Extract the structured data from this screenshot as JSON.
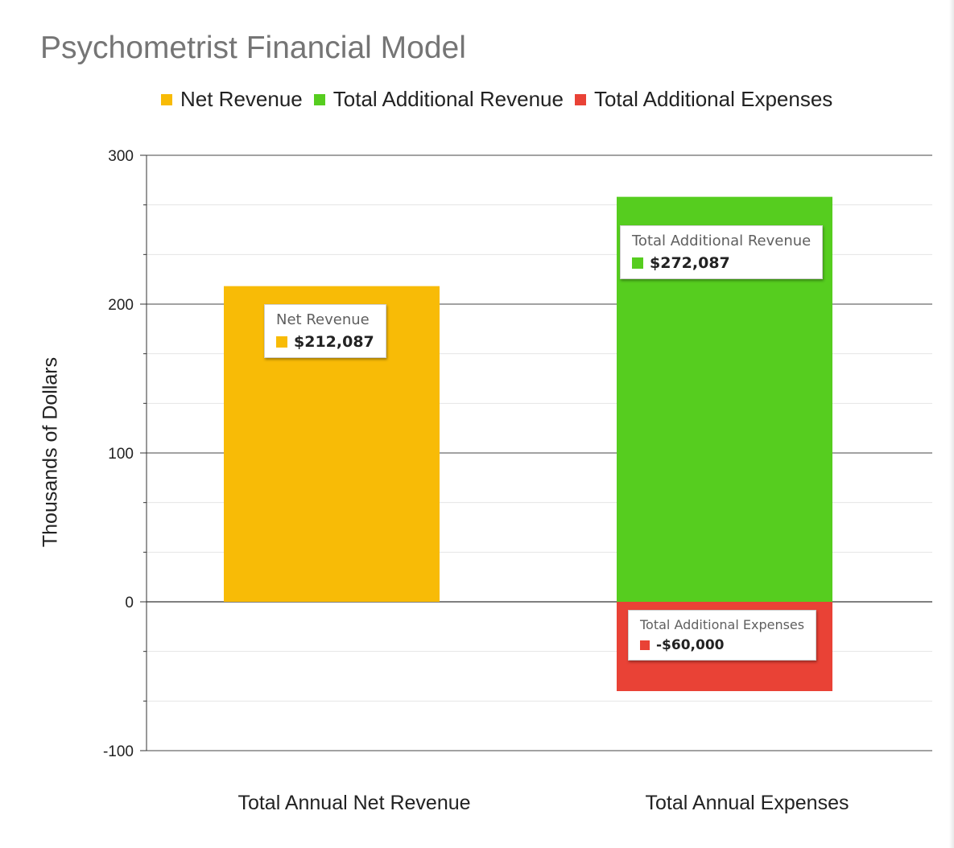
{
  "chart_data": {
    "type": "bar",
    "stacked": true,
    "title": "Psychometrist Financial Model",
    "ylabel": "Thousands of Dollars",
    "xlabel": "",
    "ylim": [
      -100,
      300
    ],
    "yticks": [
      300,
      200,
      100,
      0,
      -100
    ],
    "categories": [
      "Total Annual Net Revenue",
      "Total Annual Expenses"
    ],
    "series": [
      {
        "name": "Net Revenue",
        "color": "#f8bb06",
        "values": [
          212.087,
          null
        ]
      },
      {
        "name": "Total Additional Revenue",
        "color": "#56cd1f",
        "values": [
          null,
          272.087
        ]
      },
      {
        "name": "Total Additional Expenses",
        "color": "#e94236",
        "values": [
          null,
          -60
        ]
      }
    ],
    "legend_position": "top",
    "grid": true,
    "annotations": [
      {
        "series": "Net Revenue",
        "label": "Net Revenue",
        "value_text": "$212,087"
      },
      {
        "series": "Total Additional Revenue",
        "label": "Total Additional Revenue",
        "value_text": "$272,087"
      },
      {
        "series": "Total Additional Expenses",
        "label": "Total Additional Expenses",
        "value_text": "-$60,000"
      }
    ]
  }
}
